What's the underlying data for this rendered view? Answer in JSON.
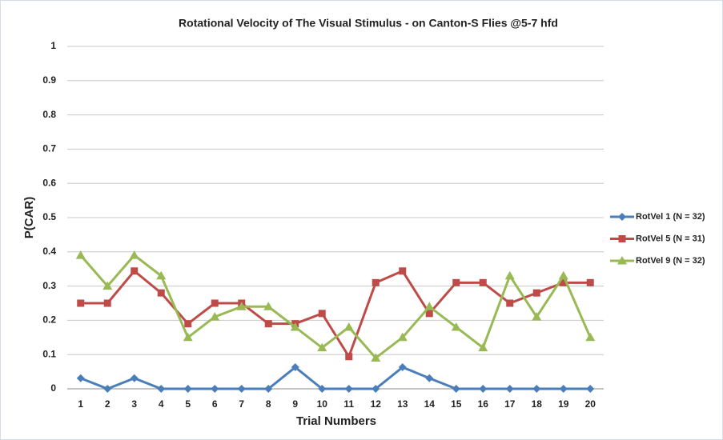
{
  "chart_data": {
    "type": "line",
    "title": "Rotational Velocity of The Visual Stimulus - on Canton-S Flies @5-7 hfd",
    "x_label": "Trial Numbers",
    "y_label": "P(CAR)",
    "categories": [
      "1",
      "2",
      "3",
      "4",
      "5",
      "6",
      "7",
      "8",
      "9",
      "10",
      "11",
      "12",
      "13",
      "14",
      "15",
      "16",
      "17",
      "18",
      "19",
      "20"
    ],
    "series": [
      {
        "name": "RotVel 1 (N = 32)",
        "color": "#4a7ebb",
        "marker": "diamond",
        "values": [
          0.031,
          0,
          0.031,
          0,
          0,
          0,
          0,
          0,
          0.063,
          0,
          0,
          0,
          0.063,
          0.031,
          0,
          0,
          0,
          0,
          0,
          0
        ]
      },
      {
        "name": "RotVel 5 (N = 31)",
        "color": "#be4b48",
        "marker": "square",
        "values": [
          0.25,
          0.25,
          0.344,
          0.28,
          0.19,
          0.25,
          0.25,
          0.19,
          0.19,
          0.22,
          0.094,
          0.31,
          0.344,
          0.22,
          0.31,
          0.31,
          0.25,
          0.28,
          0.31,
          0.31
        ]
      },
      {
        "name": "RotVel 9 (N = 32)",
        "color": "#98b954",
        "marker": "triangle",
        "values": [
          0.39,
          0.3,
          0.39,
          0.33,
          0.15,
          0.21,
          0.24,
          0.24,
          0.18,
          0.12,
          0.18,
          0.09,
          0.15,
          0.24,
          0.18,
          0.12,
          0.33,
          0.21,
          0.33,
          0.15
        ]
      }
    ],
    "ylim": [
      0,
      1
    ],
    "yticks": [
      0,
      0.1,
      0.2,
      0.3,
      0.4,
      0.5,
      0.6,
      0.7,
      0.8,
      0.9,
      1
    ],
    "grid": true,
    "legend": "right"
  }
}
